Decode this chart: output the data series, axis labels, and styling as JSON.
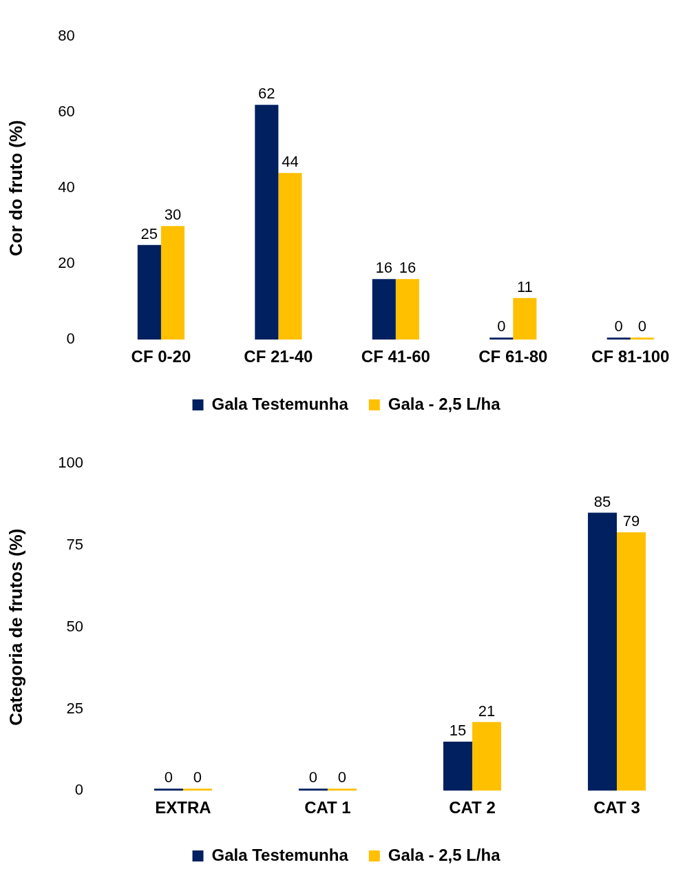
{
  "chart_data": [
    {
      "type": "bar",
      "ylabel": "Cor do fruto (%)",
      "categories": [
        "CF 0-20",
        "CF 21-40",
        "CF 41-60",
        "CF 61-80",
        "CF 81-100"
      ],
      "series": [
        {
          "name": "Gala Testemunha",
          "color": "#002060",
          "values": [
            25,
            62,
            16,
            0,
            0
          ]
        },
        {
          "name": "Gala - 2,5 L/ha",
          "color": "#ffc000",
          "values": [
            30,
            44,
            16,
            11,
            0
          ]
        }
      ],
      "ylim": [
        0,
        80
      ],
      "yticks": [
        0,
        20,
        40,
        60,
        80
      ],
      "grid": false,
      "legend": "bottom",
      "data_labels": true
    },
    {
      "type": "bar",
      "ylabel": "Categoria de frutos (%)",
      "categories": [
        "EXTRA",
        "CAT 1",
        "CAT 2",
        "CAT 3"
      ],
      "series": [
        {
          "name": "Gala Testemunha",
          "color": "#002060",
          "values": [
            0,
            0,
            15,
            85
          ]
        },
        {
          "name": "Gala - 2,5 L/ha",
          "color": "#ffc000",
          "values": [
            0,
            0,
            21,
            79
          ]
        }
      ],
      "ylim": [
        0,
        100
      ],
      "yticks": [
        0,
        25,
        50,
        75,
        100
      ],
      "grid": false,
      "legend": "bottom",
      "data_labels": true
    }
  ]
}
